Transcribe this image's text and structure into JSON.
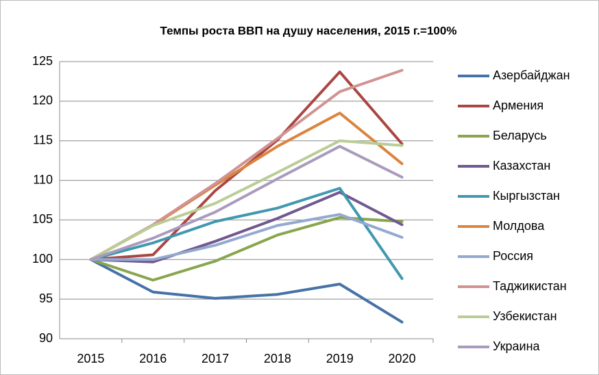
{
  "chart_data": {
    "type": "line",
    "title": "Темпы роста ВВП на душу населения, 2015 г.=100%",
    "categories": [
      "2015",
      "2016",
      "2017",
      "2018",
      "2019",
      "2020"
    ],
    "series": [
      {
        "name": "Азербайджан",
        "color": "#4572A7",
        "values": [
          100,
          95.9,
          95.1,
          95.6,
          96.9,
          92.1
        ]
      },
      {
        "name": "Армения",
        "color": "#AA4643",
        "values": [
          100,
          100.6,
          108.7,
          115.1,
          123.7,
          114.6
        ]
      },
      {
        "name": "Беларусь",
        "color": "#89A54E",
        "values": [
          100,
          97.4,
          99.8,
          103.1,
          105.3,
          104.8
        ]
      },
      {
        "name": "Казахстан",
        "color": "#71588F",
        "values": [
          100,
          99.7,
          102.3,
          105.2,
          108.5,
          104.4
        ]
      },
      {
        "name": "Кыргызстан",
        "color": "#4198AF",
        "values": [
          100,
          102.1,
          104.8,
          106.5,
          109.0,
          97.6
        ]
      },
      {
        "name": "Молдова",
        "color": "#DB843D",
        "values": [
          100,
          104.3,
          109.4,
          114.3,
          118.5,
          112.1
        ]
      },
      {
        "name": "Россия",
        "color": "#93A9CF",
        "values": [
          100,
          100.0,
          101.8,
          104.3,
          105.7,
          102.8
        ]
      },
      {
        "name": "Таджикистан",
        "color": "#D19392",
        "values": [
          100,
          104.4,
          109.6,
          115.3,
          121.2,
          123.9
        ]
      },
      {
        "name": "Узбекистан",
        "color": "#B9CD96",
        "values": [
          100,
          104.3,
          107.1,
          111.0,
          115.0,
          114.4
        ]
      },
      {
        "name": "Украина",
        "color": "#A99BBD",
        "values": [
          100,
          102.7,
          106.0,
          110.2,
          114.3,
          110.4
        ]
      }
    ],
    "ylim": [
      90,
      125
    ],
    "yticks": [
      90,
      95,
      100,
      105,
      110,
      115,
      120,
      125
    ],
    "grid": true,
    "legend": "right"
  }
}
